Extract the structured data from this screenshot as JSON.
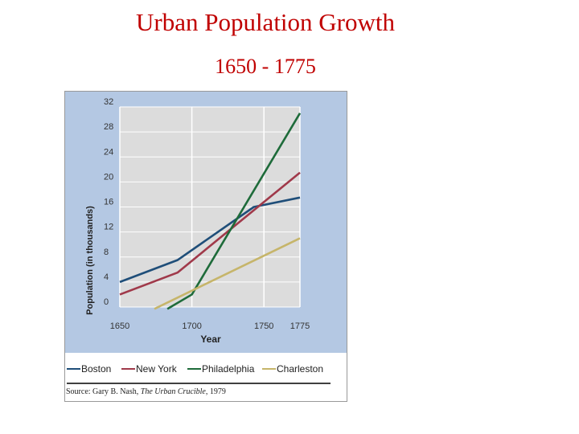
{
  "page": {
    "title": "Urban Population Growth",
    "subtitle": "1650 - 1775",
    "source_prefix": "Source: Gary B. Nash, ",
    "source_work": "The Urban Crucible",
    "source_year": ", 1979"
  },
  "colors": {
    "title": "#c00000",
    "panel": "#b4c8e3",
    "plot": "#dcdcdc"
  },
  "chart_data": {
    "type": "line",
    "title": "Urban Population Growth",
    "xlabel": "Year",
    "ylabel": "Population (in thousands)",
    "xlim": [
      1650,
      1775
    ],
    "ylim": [
      0,
      32
    ],
    "xticks": [
      1650,
      1700,
      1750,
      1775
    ],
    "yticks": [
      0,
      4,
      8,
      12,
      16,
      20,
      24,
      28,
      32
    ],
    "series": [
      {
        "name": "Boston",
        "color": "#1f4e79",
        "x": [
          1650,
          1690,
          1743,
          1775
        ],
        "y": [
          4,
          7.5,
          16,
          17.5
        ]
      },
      {
        "name": "New York",
        "color": "#a0394a",
        "x": [
          1650,
          1690,
          1775
        ],
        "y": [
          2,
          5.5,
          21.5
        ]
      },
      {
        "name": "Philadelphia",
        "color": "#1e6b3a",
        "x": [
          1683,
          1700,
          1775
        ],
        "y": [
          -0.3,
          2,
          31
        ]
      },
      {
        "name": "Charleston",
        "color": "#c6b56a",
        "x": [
          1674,
          1775
        ],
        "y": [
          -0.3,
          11
        ]
      }
    ]
  }
}
